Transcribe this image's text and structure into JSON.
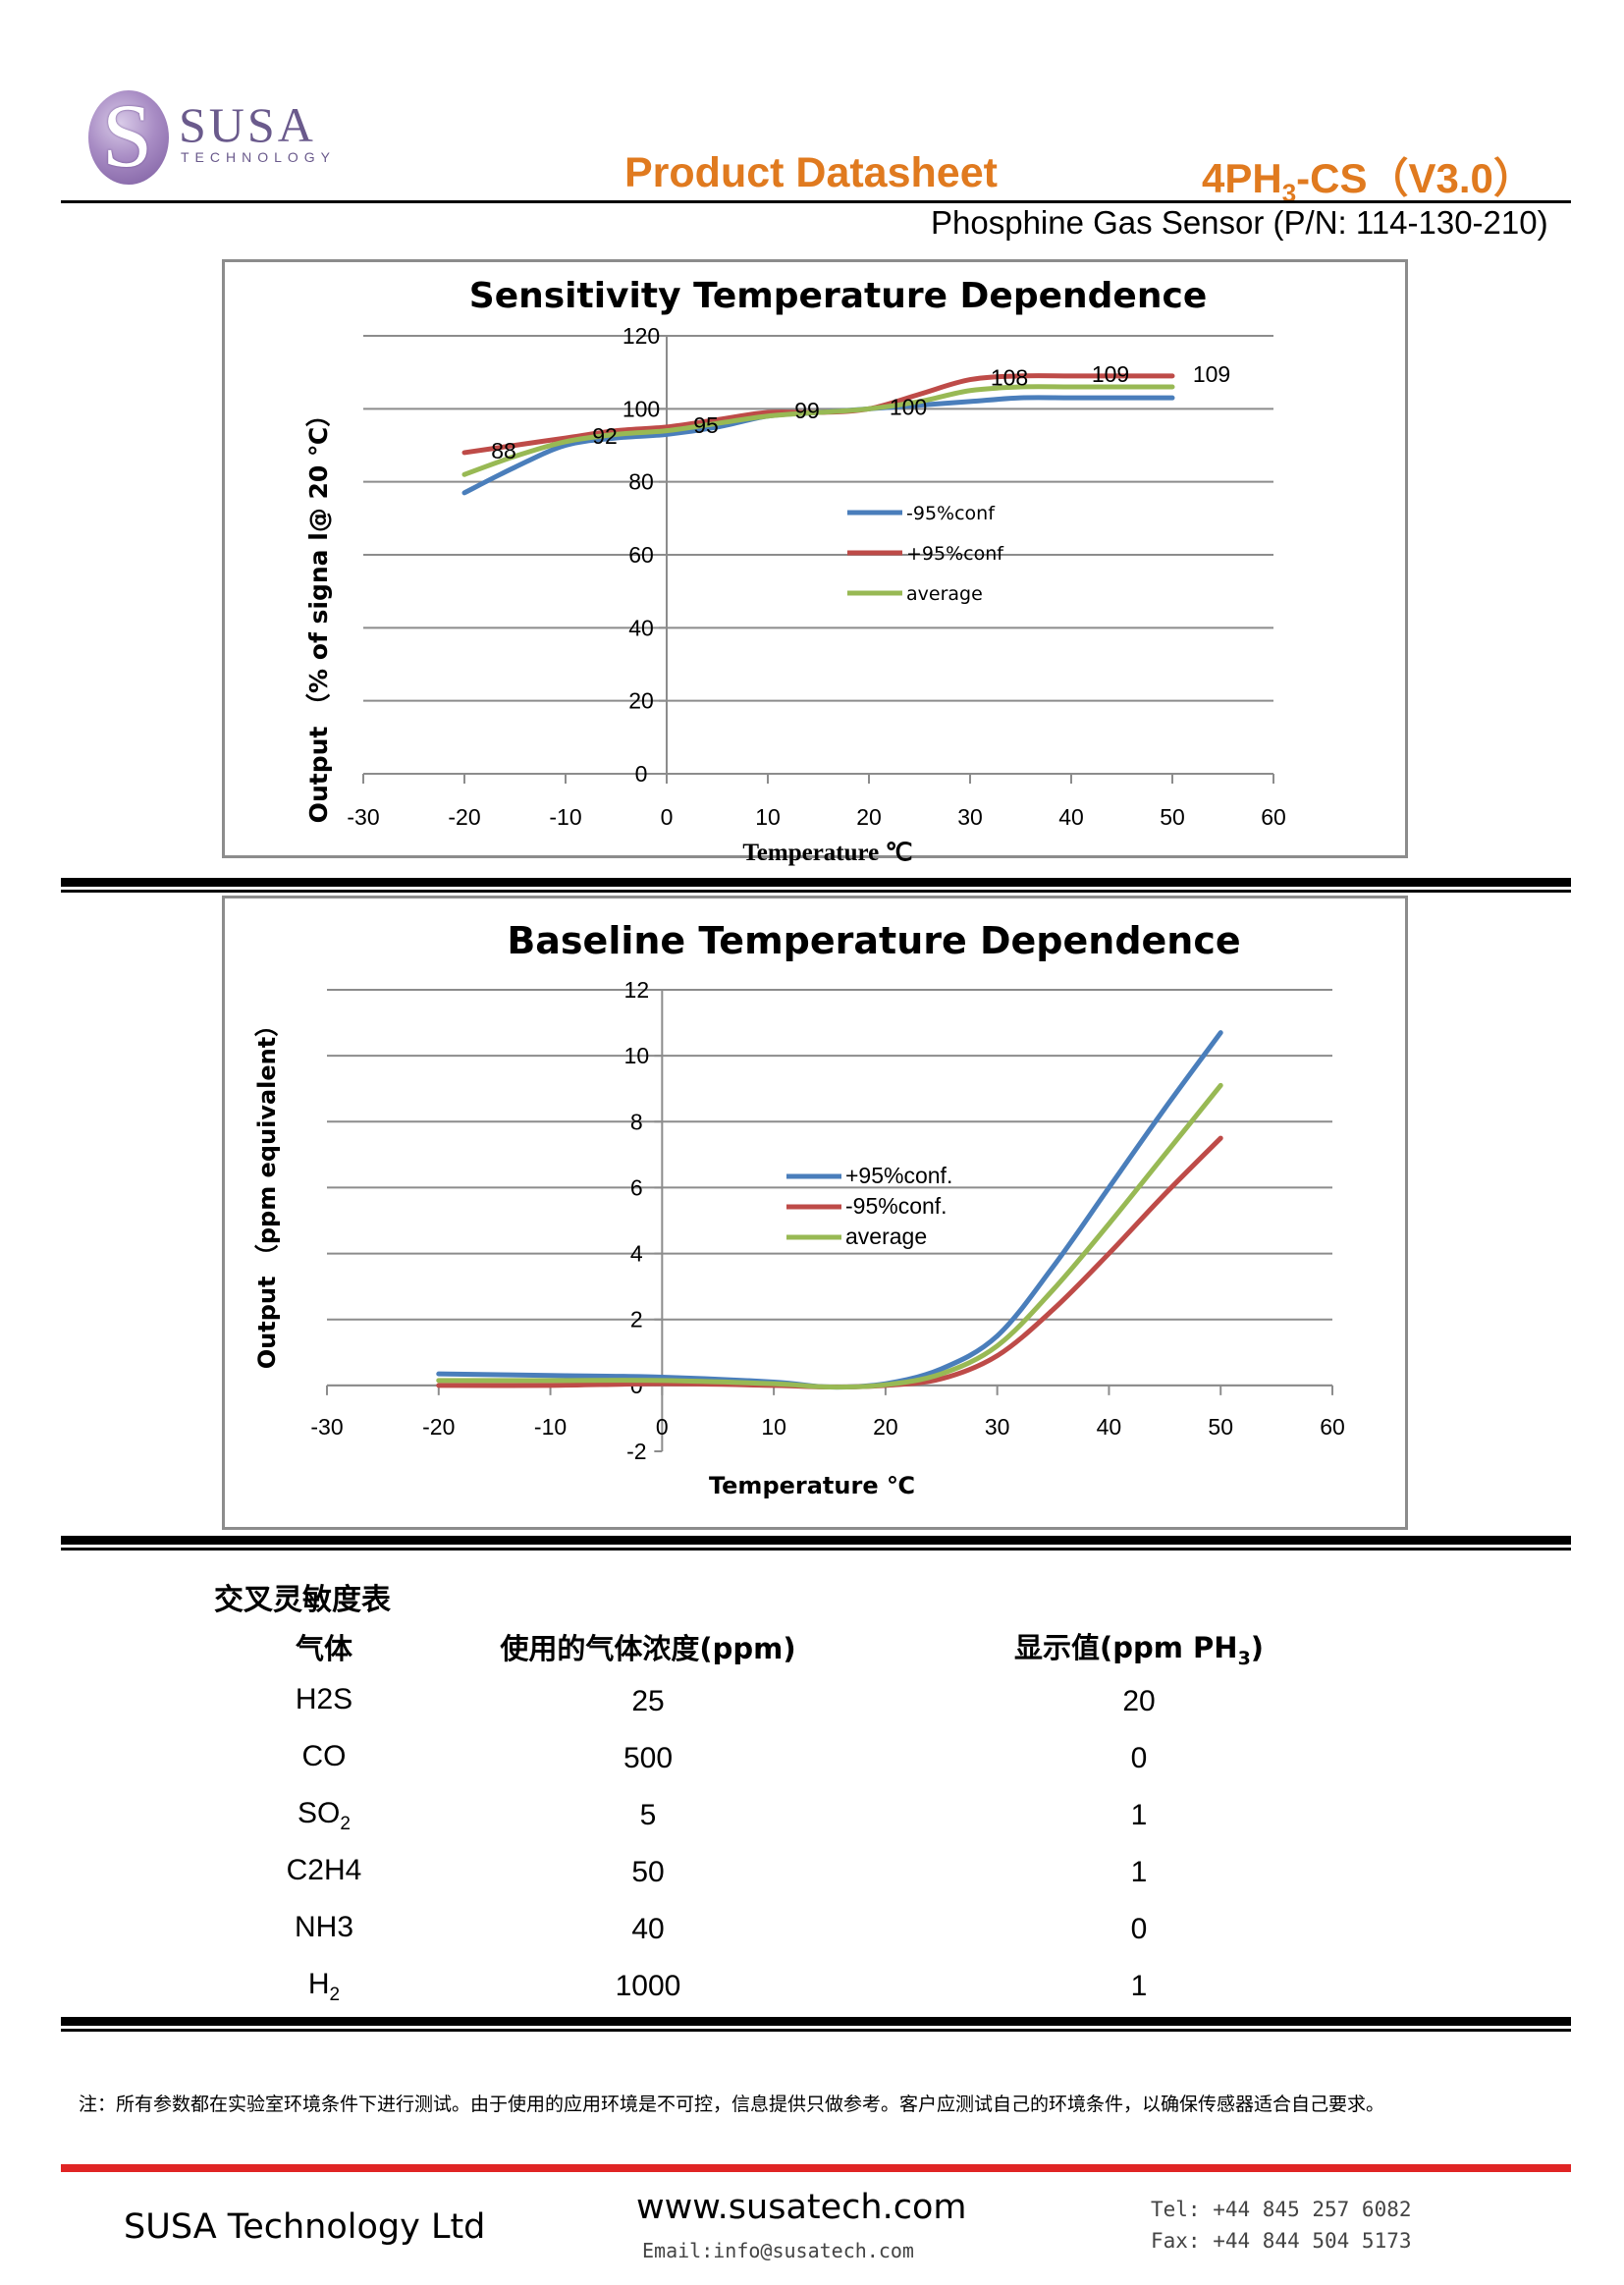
{
  "header": {
    "logo_letter": "S",
    "logo_name": "SUSA",
    "logo_sub": "TECHNOLOGY",
    "doc_title": "Product Datasheet",
    "product_code_pre": "4PH",
    "product_code_sub": "3",
    "product_code_post": "-CS（V3.0）",
    "subtitle": "Phosphine Gas Sensor (P/N: 114-130-210)"
  },
  "colors": {
    "accent_orange": "#e07a1f",
    "series_blue": "#4a7ebb",
    "series_red": "#be4b48",
    "series_green": "#98b954",
    "rule_red": "#e02424"
  },
  "chart_data": [
    {
      "type": "line",
      "title": "Sensitivity Temperature Dependence",
      "xlabel": "Temperature ℃",
      "ylabel": "Output （% of  signa l@ 20 ℃）",
      "xlim": [
        -30,
        60
      ],
      "ylim": [
        0,
        120
      ],
      "xticks": [
        -30,
        -20,
        -10,
        0,
        10,
        20,
        30,
        40,
        50,
        60
      ],
      "yticks": [
        0,
        20,
        40,
        60,
        80,
        100,
        120
      ],
      "grid": true,
      "legend_position": "center",
      "series": [
        {
          "name": "-95%conf",
          "color": "#4a7ebb",
          "x": [
            -20,
            -15,
            -10,
            -5,
            0,
            5,
            10,
            15,
            20,
            25,
            30,
            35,
            40,
            45,
            50
          ],
          "y": [
            77,
            84,
            90,
            92,
            93,
            95,
            98,
            99,
            100,
            101,
            102,
            103,
            103,
            103,
            103
          ]
        },
        {
          "name": "+95%conf",
          "color": "#be4b48",
          "x": [
            -20,
            -15,
            -10,
            -5,
            0,
            5,
            10,
            15,
            20,
            25,
            30,
            35,
            40,
            45,
            50
          ],
          "y": [
            88,
            90,
            92,
            94,
            95,
            97,
            99,
            99,
            100,
            104,
            108,
            109,
            109,
            109,
            109
          ]
        },
        {
          "name": "average",
          "color": "#98b954",
          "x": [
            -20,
            -15,
            -10,
            -5,
            0,
            5,
            10,
            15,
            20,
            25,
            30,
            35,
            40,
            45,
            50
          ],
          "y": [
            82,
            87,
            91,
            93,
            94,
            96,
            98,
            99,
            100,
            102,
            105,
            106,
            106,
            106,
            106
          ]
        }
      ],
      "data_labels": [
        {
          "x": -20,
          "y": 88,
          "text": "88"
        },
        {
          "x": -10,
          "y": 92,
          "text": "92"
        },
        {
          "x": 0,
          "y": 95,
          "text": "95"
        },
        {
          "x": 10,
          "y": 99,
          "text": "99"
        },
        {
          "x": 20,
          "y": 100,
          "text": "100"
        },
        {
          "x": 30,
          "y": 108,
          "text": "108"
        },
        {
          "x": 40,
          "y": 109,
          "text": "109"
        },
        {
          "x": 50,
          "y": 109,
          "text": "109"
        }
      ]
    },
    {
      "type": "line",
      "title": "Baseline Temperature Dependence",
      "xlabel": "Temperature ℃",
      "ylabel": "Output （ppm equivalent）",
      "xlim": [
        -30,
        60
      ],
      "ylim": [
        -2,
        12
      ],
      "xticks": [
        -30,
        -20,
        -10,
        0,
        10,
        20,
        30,
        40,
        50,
        60
      ],
      "yticks": [
        -2,
        0,
        2,
        4,
        6,
        8,
        10,
        12
      ],
      "grid": true,
      "legend_position": "center",
      "series": [
        {
          "name": "+95%conf.",
          "color": "#4a7ebb",
          "x": [
            -20,
            -10,
            0,
            10,
            15,
            20,
            25,
            30,
            35,
            40,
            45,
            50
          ],
          "y": [
            0.35,
            0.3,
            0.25,
            0.1,
            -0.05,
            0.05,
            0.5,
            1.5,
            3.6,
            6.0,
            8.4,
            10.7
          ]
        },
        {
          "name": "-95%conf.",
          "color": "#be4b48",
          "x": [
            -20,
            -10,
            0,
            10,
            15,
            20,
            25,
            30,
            35,
            40,
            45,
            50
          ],
          "y": [
            0.0,
            0.0,
            0.05,
            0.0,
            -0.05,
            0.0,
            0.2,
            0.9,
            2.3,
            4.0,
            5.8,
            7.5
          ]
        },
        {
          "name": "average",
          "color": "#98b954",
          "x": [
            -20,
            -10,
            0,
            10,
            15,
            20,
            25,
            30,
            35,
            40,
            45,
            50
          ],
          "y": [
            0.15,
            0.15,
            0.15,
            0.05,
            -0.05,
            0.02,
            0.35,
            1.2,
            2.9,
            4.9,
            7.0,
            9.1
          ]
        }
      ]
    }
  ],
  "table": {
    "title": "交叉灵敏度表",
    "headers": [
      "气体",
      "使用的气体浓度(ppm)",
      "显示值(ppm PH",
      "3",
      ")"
    ],
    "rows": [
      {
        "gas": "H2S",
        "gas_sub": "",
        "gas_tail": "",
        "conc": "25",
        "reading": "20"
      },
      {
        "gas": "CO",
        "gas_sub": "",
        "gas_tail": "",
        "conc": "500",
        "reading": "0"
      },
      {
        "gas": "SO",
        "gas_sub": "2",
        "gas_tail": "",
        "conc": "5",
        "reading": "1"
      },
      {
        "gas": "C2H4",
        "gas_sub": "",
        "gas_tail": "",
        "conc": "50",
        "reading": "1"
      },
      {
        "gas": "NH3",
        "gas_sub": "",
        "gas_tail": "",
        "conc": "40",
        "reading": "0"
      },
      {
        "gas": "H",
        "gas_sub": "2",
        "gas_tail": "",
        "conc": "1000",
        "reading": "1"
      }
    ]
  },
  "note": "注：所有参数都在实验室环境条件下进行测试。由于使用的应用环境是不可控，信息提供只做参考。客户应测试自己的环境条件，以确保传感器适合自己要求。",
  "footer": {
    "company": "SUSA Technology Ltd",
    "website": "www.susatech.com",
    "email": "Email:info@susatech.com",
    "tel": "Tel: +44 845 257 6082",
    "fax": "Fax: +44 844 504 5173"
  }
}
